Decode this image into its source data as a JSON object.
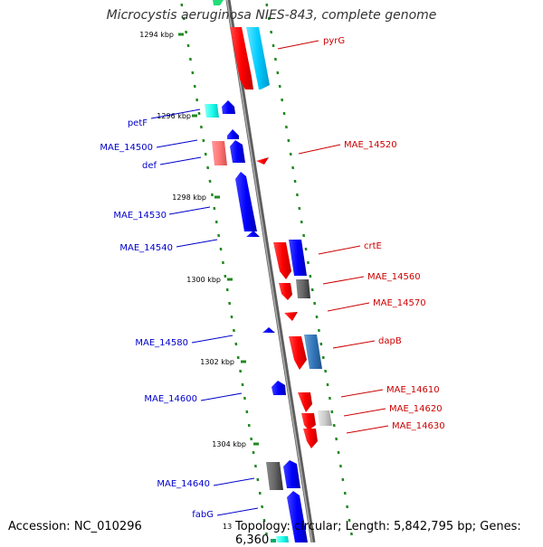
{
  "title": "Microcystis aeruginosa NIES-843, complete genome",
  "footer": {
    "accession": "Accession: NC_010296",
    "topology": "Topology: circular; Length: 5,842,795 bp; Genes: 6,360",
    "tick_fragment": "13"
  },
  "colors": {
    "backbone": "#808080",
    "tick": "#228822",
    "forward_label": "#cc0000",
    "reverse_label": "#0000cc"
  },
  "ticks": [
    "1294 kbp",
    "1296 kbp",
    "1298 kbp",
    "1300 kbp",
    "1302 kbp",
    "1304 kbp"
  ],
  "labels": {
    "right": [
      "pyrG",
      "MAE_14520",
      "crtE",
      "MAE_14560",
      "MAE_14570",
      "dapB",
      "MAE_14610",
      "MAE_14620",
      "MAE_14630"
    ],
    "left": [
      "petF",
      "MAE_14500",
      "def",
      "MAE_14530",
      "MAE_14540",
      "MAE_14580",
      "MAE_14600",
      "MAE_14640",
      "fabG"
    ]
  }
}
